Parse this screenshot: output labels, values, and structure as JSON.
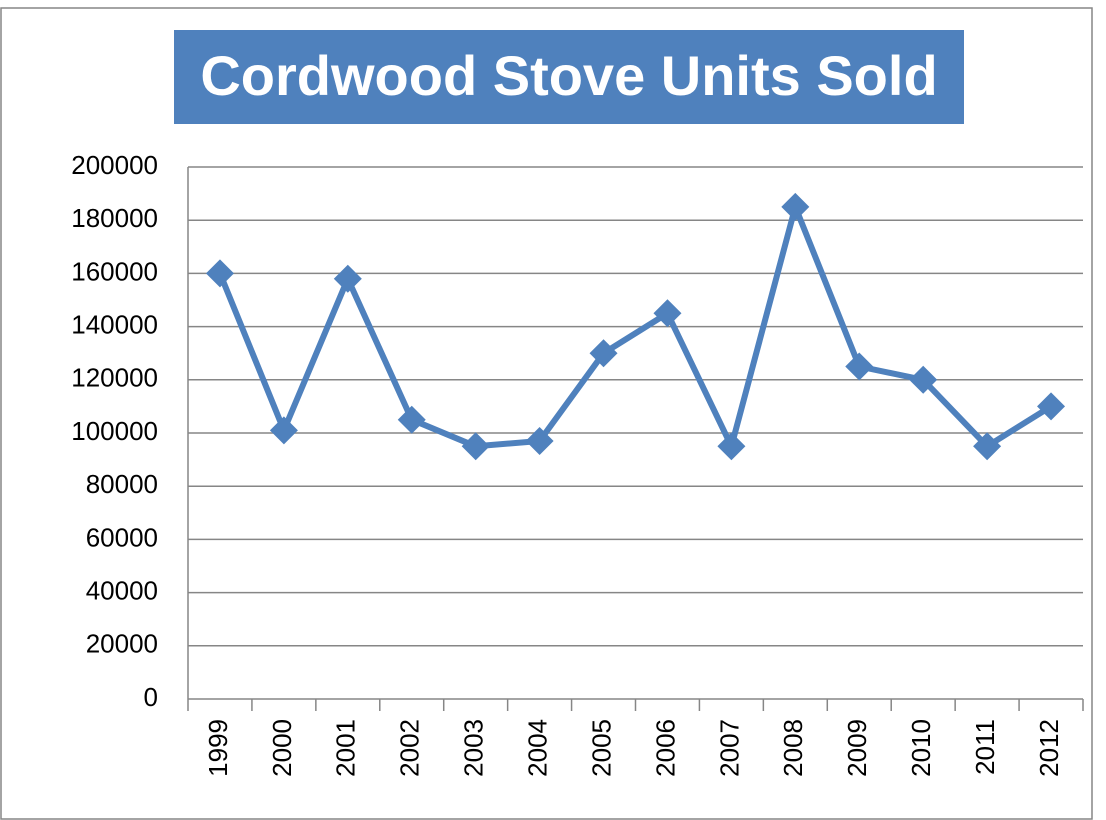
{
  "chart_data": {
    "type": "line",
    "title": "Cordwood Stove Units Sold",
    "categories": [
      "1999",
      "2000",
      "2001",
      "2002",
      "2003",
      "2004",
      "2005",
      "2006",
      "2007",
      "2008",
      "2009",
      "2010",
      "2011",
      "2012"
    ],
    "values": [
      160000,
      101000,
      158000,
      105000,
      95000,
      97000,
      130000,
      145000,
      95000,
      185000,
      125000,
      120000,
      95000,
      110000
    ],
    "color": "#4f81bd",
    "title_background": "#4f81bd",
    "ylim": [
      0,
      200000
    ],
    "yticks": [
      0,
      20000,
      40000,
      60000,
      80000,
      100000,
      120000,
      140000,
      160000,
      180000,
      200000
    ],
    "grid": true,
    "marker": "diamond"
  }
}
